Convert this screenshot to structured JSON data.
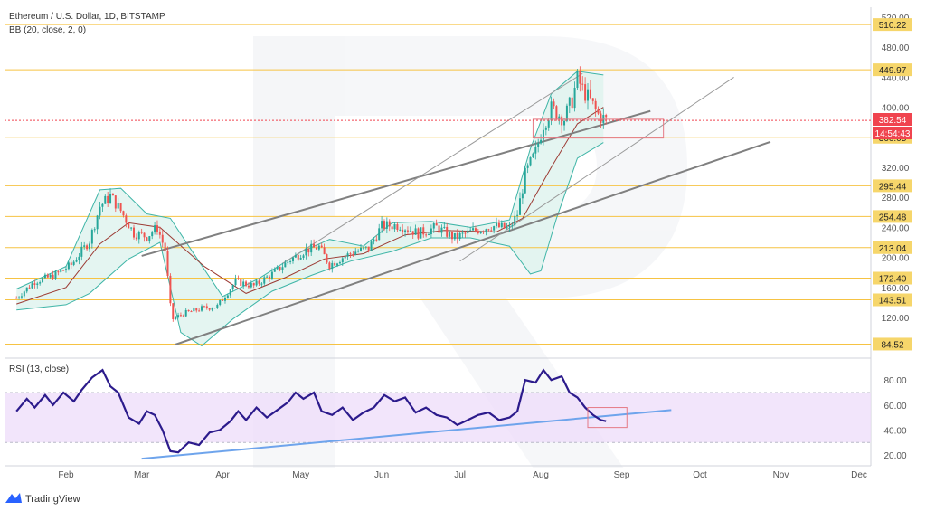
{
  "header": {
    "title": "Ethereum / U.S. Dollar, 1D, BITSTAMP",
    "indicator": "BB (20, close, 2, 0)"
  },
  "rsi_panel": {
    "label": "RSI (13, close)"
  },
  "branding": {
    "name": "TradingView"
  },
  "last_price": {
    "value": "382.54",
    "countdown": "14:54:43"
  },
  "colors": {
    "level_line": "#f6c343",
    "level_label_bg": "#f6d66b",
    "price_label_bg": "#f0444f",
    "candle_up": "#26a69a",
    "candle_down": "#ef5350",
    "bb_band": "#3fb5a7",
    "bb_basis": "#9c3b34",
    "bb_fill": "#dff3ee",
    "rsi_line": "#2c1b8c",
    "rsi_fill": "#eedcfa",
    "trend_line": "#808080",
    "rsi_trend": "#6ea4ec",
    "zone_border": "#e57a85"
  },
  "chart_data": [
    {
      "type": "candlestick",
      "title": "Ethereum / U.S. Dollar, 1D, BITSTAMP",
      "y_axis_ticks": [
        "520.00",
        "480.00",
        "440.00",
        "400.00",
        "360.00",
        "320.00",
        "280.00",
        "240.00",
        "200.00",
        "160.00",
        "120.00"
      ],
      "extra_axis_ticks": [
        "200.00"
      ],
      "ylim": [
        82,
        522
      ],
      "x_axis_ticks": [
        "Feb",
        "Mar",
        "Apr",
        "May",
        "Jun",
        "Jul",
        "Aug",
        "Sep",
        "Oct",
        "Nov",
        "Dec"
      ],
      "levels": [
        {
          "value": 510.22,
          "label": "510.22"
        },
        {
          "value": 449.97,
          "label": "449.97"
        },
        {
          "value": 360.05,
          "label": "360.05"
        },
        {
          "value": 295.44,
          "label": "295.44"
        },
        {
          "value": 254.48,
          "label": "254.48"
        },
        {
          "value": 213.04,
          "label": "213.04"
        },
        {
          "value": 172.4,
          "label": "172.40"
        },
        {
          "value": 143.51,
          "label": "143.51"
        },
        {
          "value": 84.52,
          "label": "84.52"
        }
      ],
      "close_path": [
        [
          "2020-01-13",
          146
        ],
        [
          "2020-01-20",
          168
        ],
        [
          "2020-01-27",
          175
        ],
        [
          "2020-02-03",
          190
        ],
        [
          "2020-02-10",
          222
        ],
        [
          "2020-02-14",
          268
        ],
        [
          "2020-02-18",
          282
        ],
        [
          "2020-02-22",
          262
        ],
        [
          "2020-02-27",
          232
        ],
        [
          "2020-03-03",
          228
        ],
        [
          "2020-03-07",
          240
        ],
        [
          "2020-03-10",
          210
        ],
        [
          "2020-03-12",
          135
        ],
        [
          "2020-03-13",
          118
        ],
        [
          "2020-03-17",
          125
        ],
        [
          "2020-03-24",
          132
        ],
        [
          "2020-03-30",
          135
        ],
        [
          "2020-04-06",
          168
        ],
        [
          "2020-04-13",
          162
        ],
        [
          "2020-04-20",
          178
        ],
        [
          "2020-04-27",
          197
        ],
        [
          "2020-05-03",
          210
        ],
        [
          "2020-05-08",
          214
        ],
        [
          "2020-05-12",
          190
        ],
        [
          "2020-05-17",
          200
        ],
        [
          "2020-05-22",
          208
        ],
        [
          "2020-05-27",
          212
        ],
        [
          "2020-06-01",
          242
        ],
        [
          "2020-06-08",
          243
        ],
        [
          "2020-06-15",
          232
        ],
        [
          "2020-06-22",
          240
        ],
        [
          "2020-06-29",
          226
        ],
        [
          "2020-07-06",
          235
        ],
        [
          "2020-07-13",
          242
        ],
        [
          "2020-07-20",
          238
        ],
        [
          "2020-07-23",
          258
        ],
        [
          "2020-07-26",
          310
        ],
        [
          "2020-07-30",
          340
        ],
        [
          "2020-08-02",
          378
        ],
        [
          "2020-08-05",
          398
        ],
        [
          "2020-08-10",
          385
        ],
        [
          "2020-08-13",
          410
        ],
        [
          "2020-08-15",
          438
        ],
        [
          "2020-08-17",
          424
        ],
        [
          "2020-08-20",
          408
        ],
        [
          "2020-08-23",
          390
        ],
        [
          "2020-08-26",
          382.54
        ]
      ],
      "bollinger": {
        "upper": [
          [
            "2020-01-13",
            158
          ],
          [
            "2020-02-01",
            188
          ],
          [
            "2020-02-14",
            290
          ],
          [
            "2020-02-22",
            292
          ],
          [
            "2020-03-03",
            258
          ],
          [
            "2020-03-12",
            252
          ],
          [
            "2020-03-20",
            210
          ],
          [
            "2020-04-01",
            148
          ],
          [
            "2020-04-15",
            172
          ],
          [
            "2020-05-01",
            207
          ],
          [
            "2020-05-12",
            224
          ],
          [
            "2020-05-25",
            215
          ],
          [
            "2020-06-05",
            246
          ],
          [
            "2020-06-20",
            248
          ],
          [
            "2020-07-05",
            240
          ],
          [
            "2020-07-20",
            250
          ],
          [
            "2020-07-28",
            345
          ],
          [
            "2020-08-05",
            418
          ],
          [
            "2020-08-15",
            448
          ],
          [
            "2020-08-25",
            443
          ]
        ],
        "middle": [
          [
            "2020-01-13",
            138
          ],
          [
            "2020-02-01",
            160
          ],
          [
            "2020-02-14",
            218
          ],
          [
            "2020-02-25",
            246
          ],
          [
            "2020-03-08",
            240
          ],
          [
            "2020-03-25",
            188
          ],
          [
            "2020-04-10",
            152
          ],
          [
            "2020-04-25",
            173
          ],
          [
            "2020-05-10",
            198
          ],
          [
            "2020-05-25",
            205
          ],
          [
            "2020-06-10",
            230
          ],
          [
            "2020-06-25",
            236
          ],
          [
            "2020-07-15",
            234
          ],
          [
            "2020-07-25",
            252
          ],
          [
            "2020-08-05",
            320
          ],
          [
            "2020-08-15",
            378
          ],
          [
            "2020-08-25",
            400
          ]
        ],
        "lower": [
          [
            "2020-01-13",
            130
          ],
          [
            "2020-02-01",
            137
          ],
          [
            "2020-02-10",
            152
          ],
          [
            "2020-02-25",
            198
          ],
          [
            "2020-03-08",
            220
          ],
          [
            "2020-03-16",
            100
          ],
          [
            "2020-03-24",
            82
          ],
          [
            "2020-04-05",
            118
          ],
          [
            "2020-04-20",
            155
          ],
          [
            "2020-05-05",
            176
          ],
          [
            "2020-05-20",
            195
          ],
          [
            "2020-06-05",
            208
          ],
          [
            "2020-06-20",
            226
          ],
          [
            "2020-07-05",
            226
          ],
          [
            "2020-07-20",
            215
          ],
          [
            "2020-07-28",
            178
          ],
          [
            "2020-08-01",
            182
          ],
          [
            "2020-08-07",
            252
          ],
          [
            "2020-08-15",
            332
          ],
          [
            "2020-08-25",
            353
          ]
        ]
      },
      "trend_lines": [
        {
          "name": "channel-upper",
          "from": [
            "2020-03-01",
            202
          ],
          "to": [
            "2020-09-12",
            395
          ]
        },
        {
          "name": "channel-lower",
          "from": [
            "2020-03-14",
            84
          ],
          "to": [
            "2020-10-28",
            354
          ]
        },
        {
          "name": "fan-outer",
          "from": [
            "2020-04-24",
            192
          ],
          "to": [
            "2020-08-17",
            445
          ]
        },
        {
          "name": "fan-inner",
          "from": [
            "2020-07-01",
            195
          ],
          "to": [
            "2020-10-14",
            440
          ]
        }
      ]
    },
    {
      "type": "line",
      "title": "RSI (13, close)",
      "y_axis_ticks": [
        "80.00",
        "60.00",
        "40.00",
        "20.00"
      ],
      "ylim": [
        12,
        97
      ],
      "bands": [
        30,
        70
      ],
      "values": [
        [
          "2020-01-13",
          55
        ],
        [
          "2020-01-17",
          65
        ],
        [
          "2020-01-20",
          58
        ],
        [
          "2020-01-24",
          68
        ],
        [
          "2020-01-27",
          60
        ],
        [
          "2020-01-31",
          70
        ],
        [
          "2020-02-04",
          63
        ],
        [
          "2020-02-07",
          72
        ],
        [
          "2020-02-11",
          82
        ],
        [
          "2020-02-15",
          88
        ],
        [
          "2020-02-18",
          75
        ],
        [
          "2020-02-21",
          70
        ],
        [
          "2020-02-25",
          50
        ],
        [
          "2020-02-29",
          45
        ],
        [
          "2020-03-03",
          55
        ],
        [
          "2020-03-06",
          52
        ],
        [
          "2020-03-09",
          40
        ],
        [
          "2020-03-12",
          23
        ],
        [
          "2020-03-15",
          22
        ],
        [
          "2020-03-19",
          30
        ],
        [
          "2020-03-23",
          28
        ],
        [
          "2020-03-27",
          38
        ],
        [
          "2020-03-31",
          40
        ],
        [
          "2020-04-04",
          47
        ],
        [
          "2020-04-07",
          55
        ],
        [
          "2020-04-10",
          48
        ],
        [
          "2020-04-14",
          58
        ],
        [
          "2020-04-18",
          50
        ],
        [
          "2020-04-22",
          56
        ],
        [
          "2020-04-26",
          62
        ],
        [
          "2020-04-29",
          70
        ],
        [
          "2020-05-02",
          65
        ],
        [
          "2020-05-06",
          70
        ],
        [
          "2020-05-09",
          55
        ],
        [
          "2020-05-13",
          52
        ],
        [
          "2020-05-17",
          58
        ],
        [
          "2020-05-21",
          48
        ],
        [
          "2020-05-25",
          54
        ],
        [
          "2020-05-29",
          58
        ],
        [
          "2020-06-02",
          68
        ],
        [
          "2020-06-06",
          63
        ],
        [
          "2020-06-10",
          66
        ],
        [
          "2020-06-14",
          54
        ],
        [
          "2020-06-18",
          58
        ],
        [
          "2020-06-22",
          52
        ],
        [
          "2020-06-26",
          50
        ],
        [
          "2020-06-30",
          44
        ],
        [
          "2020-07-04",
          48
        ],
        [
          "2020-07-08",
          52
        ],
        [
          "2020-07-12",
          54
        ],
        [
          "2020-07-16",
          48
        ],
        [
          "2020-07-20",
          50
        ],
        [
          "2020-07-23",
          55
        ],
        [
          "2020-07-26",
          80
        ],
        [
          "2020-07-30",
          78
        ],
        [
          "2020-08-02",
          88
        ],
        [
          "2020-08-05",
          80
        ],
        [
          "2020-08-09",
          83
        ],
        [
          "2020-08-12",
          70
        ],
        [
          "2020-08-15",
          66
        ],
        [
          "2020-08-18",
          58
        ],
        [
          "2020-08-21",
          52
        ],
        [
          "2020-08-24",
          48
        ],
        [
          "2020-08-26",
          47
        ]
      ],
      "trend_line": {
        "from": [
          "2020-03-01",
          17
        ],
        "to": [
          "2020-09-20",
          56
        ]
      }
    }
  ]
}
